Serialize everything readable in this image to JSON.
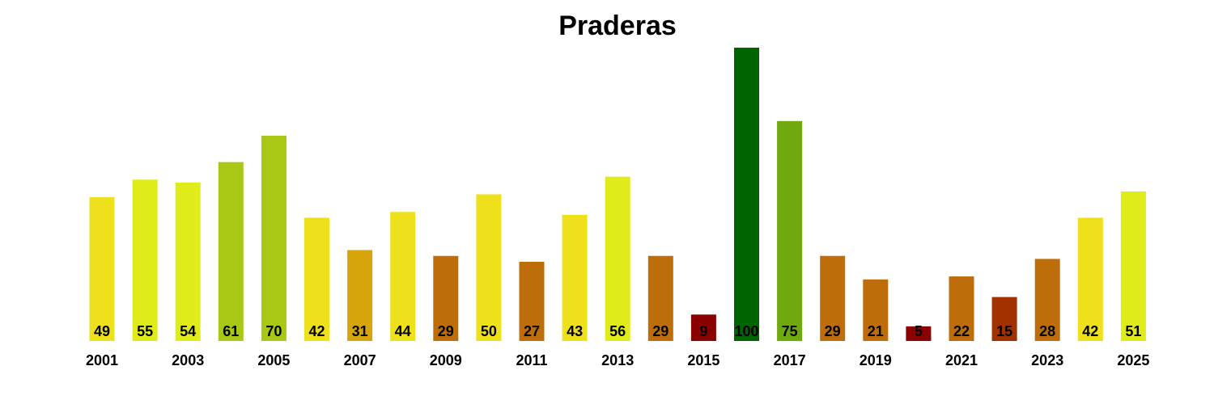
{
  "chart_data": {
    "type": "bar",
    "title": "Praderas",
    "xlabel": "",
    "ylabel": "",
    "ylim": [
      0,
      100
    ],
    "grid": false,
    "legend": "none",
    "categories": [
      "2001",
      "2002",
      "2003",
      "2004",
      "2005",
      "2006",
      "2007",
      "2008",
      "2009",
      "2010",
      "2011",
      "2012",
      "2013",
      "2014",
      "2015",
      "2016",
      "2017",
      "2018",
      "2019",
      "2020",
      "2021",
      "2022",
      "2023",
      "2024",
      "2025"
    ],
    "tick_labels": [
      "2001",
      "2003",
      "2005",
      "2007",
      "2009",
      "2011",
      "2013",
      "2015",
      "2017",
      "2019",
      "2021",
      "2023",
      "2025"
    ],
    "values": [
      49,
      55,
      54,
      61,
      70,
      42,
      31,
      44,
      29,
      50,
      27,
      43,
      56,
      29,
      9,
      100,
      75,
      29,
      21,
      5,
      22,
      15,
      28,
      42,
      51
    ],
    "colors": [
      "#EEE01A",
      "#E0EC1A",
      "#E0EC1A",
      "#A8C815",
      "#A8C815",
      "#EEE01A",
      "#D6A50C",
      "#EEE01A",
      "#BD6E0A",
      "#EEE01A",
      "#BD6E0A",
      "#EEE01A",
      "#E0EC1A",
      "#BD6E0A",
      "#8B0000",
      "#006400",
      "#6FA90E",
      "#BD6E0A",
      "#BD6E0A",
      "#8B0000",
      "#BD6E0A",
      "#A13200",
      "#BD6E0A",
      "#EEE01A",
      "#E0EC1A"
    ]
  }
}
